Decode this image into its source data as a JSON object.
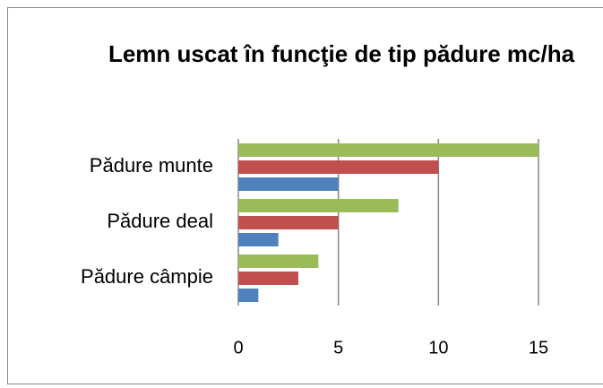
{
  "chart_data": {
    "type": "hbar",
    "title": "Lemn uscat în funcţie de tip pădure mc/ha",
    "categories": [
      "Pădure munte",
      "Pădure deal",
      "Pădure câmpie"
    ],
    "series": [
      {
        "color": "#4f81bd",
        "values": [
          5,
          2,
          1
        ]
      },
      {
        "color": "#c0504d",
        "values": [
          10,
          5,
          3
        ]
      },
      {
        "color": "#9bbb59",
        "values": [
          15,
          8,
          4
        ]
      }
    ],
    "xlim": [
      0,
      15
    ],
    "xticks": [
      0,
      5,
      10,
      15
    ],
    "grid": true
  }
}
